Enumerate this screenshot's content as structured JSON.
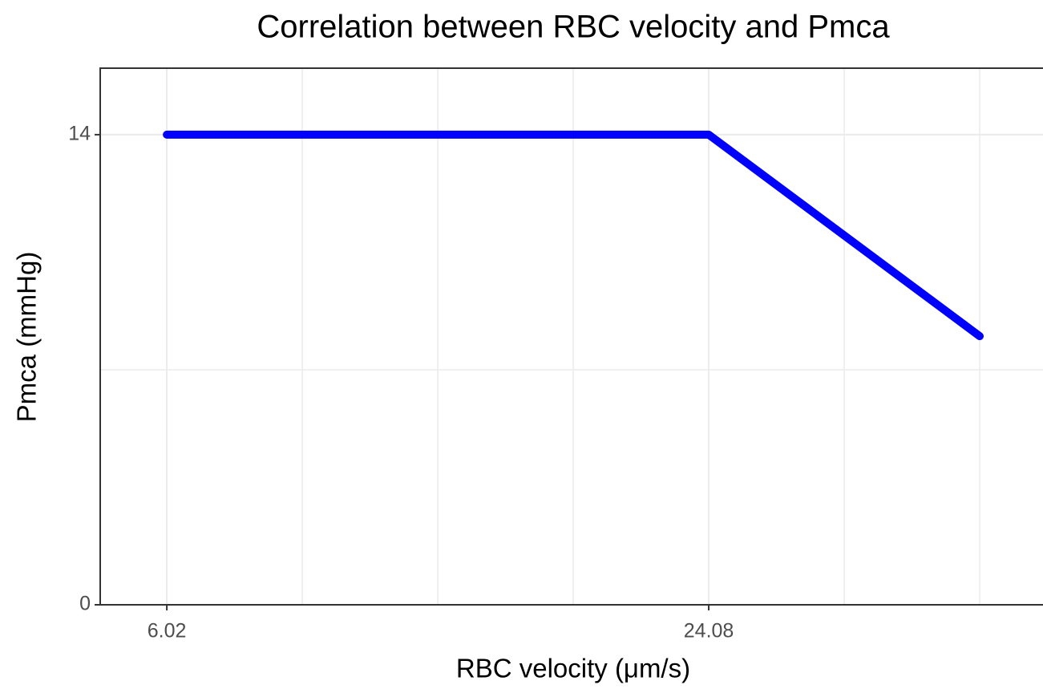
{
  "chart_data": {
    "type": "line",
    "title": "Correlation between RBC velocity and Pmca",
    "x_label": "RBC velocity (μm/s)",
    "y_label": "Pmca (mmHg)",
    "x": [
      6.02,
      24.08,
      33.11
    ],
    "series": [
      {
        "name": "Pmca",
        "color": "#0000ff",
        "values": [
          14,
          14,
          8
        ]
      }
    ],
    "xlim": [
      3.8,
      35.22
    ],
    "xticks": [
      6.02,
      24.08
    ],
    "ylim": [
      0,
      15.98
    ],
    "yticks": [
      0,
      14
    ],
    "grid": true
  }
}
